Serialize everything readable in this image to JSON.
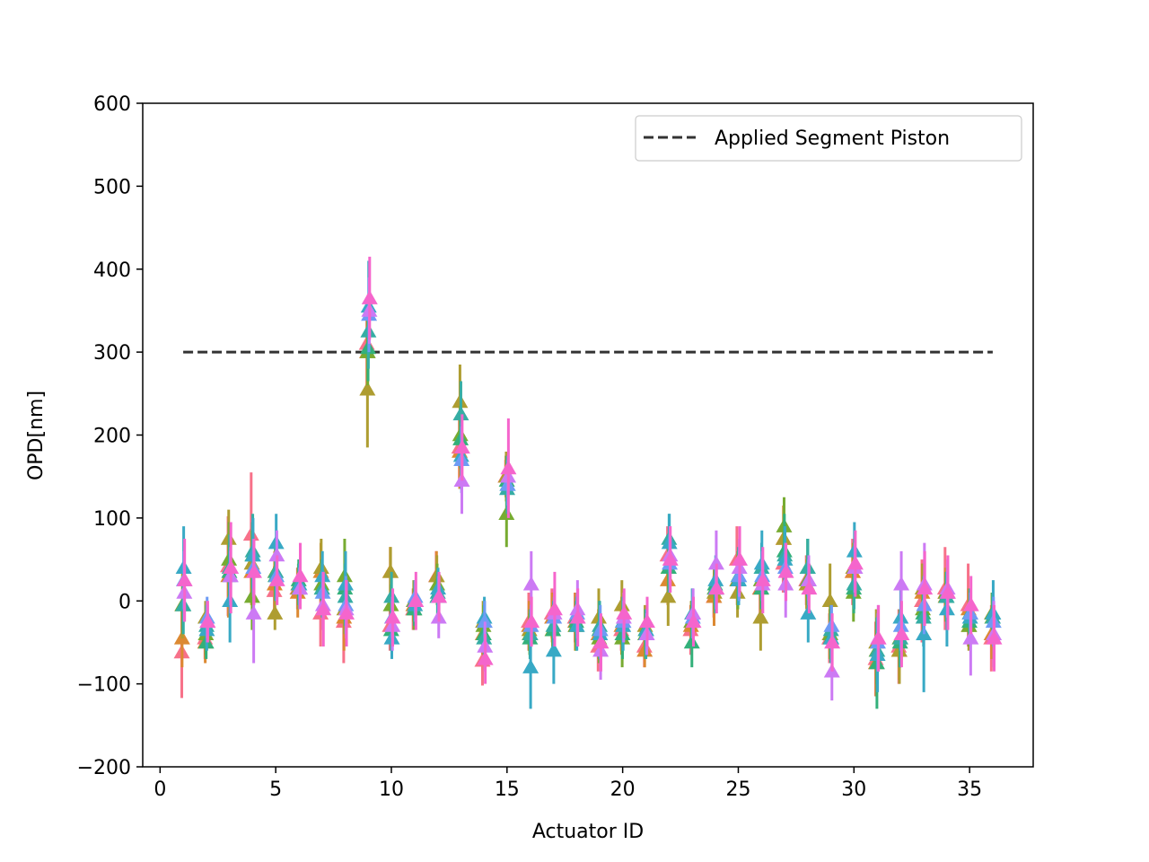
{
  "chart_data": {
    "type": "scatter",
    "xlabel": "Actuator ID",
    "ylabel": "OPD[nm]",
    "xlim": [
      -0.75,
      37.75
    ],
    "ylim": [
      -200,
      600
    ],
    "xticks": [
      0,
      5,
      10,
      15,
      20,
      25,
      30,
      35
    ],
    "yticks": [
      -200,
      -100,
      0,
      100,
      200,
      300,
      400,
      500,
      600
    ],
    "ytick_labels": [
      "−200",
      "−100",
      "0",
      "100",
      "200",
      "300",
      "400",
      "500",
      "600"
    ],
    "grid": false,
    "legend": {
      "position": "top-right",
      "entries": [
        "Applied Segment Piston"
      ]
    },
    "reference_line": {
      "name": "Applied Segment Piston",
      "y": 300,
      "x_range": [
        1,
        36
      ],
      "color": "#333333",
      "style": "dashed"
    },
    "marker": "triangle-up",
    "palette": [
      "#f77189",
      "#dc8932",
      "#ae9d31",
      "#77ab31",
      "#33b07a",
      "#36ada4",
      "#38a9c5",
      "#6e9bf4",
      "#cc7af4",
      "#f565cc"
    ],
    "actuators": [
      1,
      2,
      3,
      4,
      5,
      6,
      7,
      8,
      9,
      10,
      11,
      12,
      13,
      14,
      15,
      16,
      17,
      18,
      19,
      20,
      21,
      22,
      23,
      24,
      25,
      26,
      27,
      28,
      29,
      30,
      31,
      32,
      33,
      34,
      35,
      36
    ],
    "series": [
      {
        "values": [
          -62,
          -45,
          42,
          80,
          12,
          15,
          -15,
          -25,
          310,
          -30,
          -10,
          30,
          185,
          -72,
          150,
          -25,
          -15,
          -20,
          -55,
          -35,
          -55,
          55,
          -35,
          5,
          50,
          15,
          45,
          25,
          -45,
          35,
          -70,
          -55,
          0,
          15,
          -5,
          -45
        ],
        "errors": [
          55,
          25,
          60,
          75,
          30,
          25,
          40,
          50,
          50,
          30,
          25,
          30,
          40,
          30,
          20,
          35,
          30,
          30,
          30,
          25,
          25,
          35,
          30,
          25,
          40,
          30,
          35,
          30,
          30,
          40,
          45,
          45,
          50,
          50,
          50,
          40
        ]
      },
      {
        "values": [
          -45,
          -50,
          30,
          35,
          20,
          10,
          35,
          -20,
          300,
          35,
          -5,
          30,
          180,
          -40,
          150,
          -30,
          -20,
          -25,
          -40,
          -30,
          -60,
          25,
          -30,
          5,
          25,
          15,
          75,
          20,
          -40,
          35,
          -75,
          -60,
          10,
          10,
          -10,
          -40
        ],
        "errors": [
          35,
          25,
          50,
          40,
          40,
          30,
          35,
          40,
          50,
          30,
          20,
          30,
          45,
          25,
          25,
          30,
          30,
          35,
          30,
          35,
          20,
          30,
          25,
          35,
          30,
          30,
          40,
          30,
          30,
          30,
          40,
          35,
          35,
          30,
          25,
          30
        ]
      },
      {
        "values": [
          -5,
          -20,
          75,
          45,
          -15,
          15,
          40,
          -10,
          255,
          35,
          0,
          30,
          240,
          -25,
          150,
          -35,
          -35,
          -30,
          -20,
          -5,
          -30,
          5,
          -25,
          10,
          10,
          -20,
          75,
          20,
          0,
          40,
          -50,
          -60,
          15,
          5,
          -30,
          -15
        ],
        "errors": [
          40,
          20,
          35,
          40,
          20,
          25,
          35,
          30,
          70,
          30,
          25,
          25,
          45,
          25,
          30,
          25,
          20,
          25,
          35,
          30,
          25,
          35,
          25,
          25,
          30,
          40,
          35,
          30,
          45,
          30,
          40,
          40,
          30,
          30,
          30,
          25
        ]
      },
      {
        "values": [
          -5,
          -40,
          50,
          5,
          35,
          20,
          20,
          30,
          300,
          -5,
          -10,
          20,
          200,
          -30,
          105,
          -40,
          -35,
          -30,
          -45,
          -45,
          -40,
          40,
          -25,
          15,
          25,
          25,
          90,
          25,
          -40,
          10,
          -60,
          -45,
          -10,
          10,
          -30,
          -20
        ],
        "errors": [
          35,
          25,
          45,
          40,
          30,
          25,
          30,
          45,
          40,
          25,
          25,
          25,
          35,
          25,
          40,
          25,
          30,
          30,
          30,
          35,
          30,
          25,
          25,
          25,
          35,
          25,
          35,
          30,
          30,
          35,
          40,
          35,
          30,
          25,
          25,
          30
        ]
      },
      {
        "values": [
          -5,
          -50,
          35,
          55,
          30,
          25,
          15,
          15,
          305,
          -35,
          -10,
          5,
          195,
          -40,
          145,
          -45,
          -35,
          -25,
          -35,
          -40,
          -35,
          40,
          -50,
          20,
          25,
          15,
          60,
          40,
          -45,
          15,
          -75,
          -50,
          -15,
          5,
          -25,
          -15
        ],
        "errors": [
          30,
          20,
          35,
          40,
          30,
          25,
          25,
          30,
          40,
          25,
          20,
          25,
          35,
          20,
          30,
          25,
          30,
          25,
          35,
          30,
          25,
          30,
          30,
          25,
          30,
          25,
          45,
          35,
          30,
          30,
          55,
          30,
          30,
          25,
          25,
          25
        ]
      },
      {
        "values": [
          -5,
          -30,
          40,
          60,
          35,
          20,
          15,
          5,
          325,
          5,
          0,
          10,
          225,
          -45,
          135,
          -40,
          -30,
          -20,
          -30,
          -25,
          -40,
          75,
          -15,
          15,
          30,
          40,
          55,
          40,
          -35,
          20,
          -60,
          -45,
          -20,
          5,
          -15,
          -20
        ],
        "errors": [
          35,
          25,
          40,
          45,
          35,
          25,
          35,
          35,
          45,
          30,
          25,
          25,
          40,
          25,
          30,
          30,
          30,
          25,
          30,
          30,
          30,
          30,
          30,
          30,
          35,
          30,
          35,
          35,
          30,
          30,
          40,
          35,
          35,
          30,
          30,
          30
        ]
      },
      {
        "values": [
          40,
          -35,
          0,
          55,
          70,
          20,
          30,
          20,
          355,
          -45,
          -5,
          15,
          175,
          -20,
          140,
          -80,
          -60,
          -30,
          -40,
          -30,
          -35,
          70,
          -15,
          25,
          25,
          45,
          50,
          -15,
          -45,
          60,
          -65,
          -20,
          -40,
          -10,
          -20,
          -15
        ],
        "errors": [
          50,
          25,
          50,
          45,
          35,
          25,
          30,
          40,
          55,
          25,
          20,
          25,
          40,
          25,
          30,
          50,
          40,
          30,
          30,
          30,
          25,
          35,
          30,
          30,
          30,
          40,
          40,
          35,
          30,
          35,
          45,
          40,
          70,
          45,
          30,
          40
        ]
      },
      {
        "values": [
          25,
          -20,
          30,
          40,
          30,
          15,
          10,
          -5,
          345,
          -20,
          5,
          5,
          170,
          -25,
          140,
          -30,
          -20,
          -15,
          -35,
          -25,
          -40,
          45,
          -20,
          15,
          30,
          30,
          40,
          25,
          -30,
          40,
          -50,
          -30,
          -5,
          10,
          -15,
          -25
        ],
        "errors": [
          35,
          25,
          30,
          35,
          30,
          25,
          25,
          35,
          45,
          25,
          20,
          25,
          40,
          25,
          25,
          25,
          25,
          25,
          30,
          25,
          25,
          35,
          25,
          25,
          30,
          30,
          30,
          25,
          25,
          30,
          35,
          30,
          35,
          30,
          25,
          30
        ]
      },
      {
        "values": [
          10,
          -25,
          30,
          -15,
          55,
          15,
          -5,
          -10,
          350,
          -30,
          0,
          -20,
          145,
          -55,
          150,
          20,
          -15,
          -10,
          -60,
          -20,
          -40,
          55,
          -15,
          45,
          40,
          20,
          20,
          25,
          -85,
          40,
          -45,
          20,
          20,
          15,
          -45,
          -40
        ],
        "errors": [
          35,
          25,
          35,
          60,
          30,
          25,
          30,
          35,
          40,
          30,
          25,
          25,
          40,
          30,
          25,
          40,
          30,
          35,
          35,
          30,
          25,
          35,
          30,
          40,
          35,
          30,
          40,
          30,
          35,
          30,
          40,
          40,
          50,
          35,
          45,
          40
        ]
      },
      {
        "values": [
          25,
          -25,
          40,
          35,
          25,
          30,
          -10,
          -15,
          365,
          -20,
          0,
          5,
          185,
          -70,
          160,
          -25,
          -10,
          -20,
          -50,
          -15,
          -25,
          50,
          -25,
          15,
          50,
          25,
          35,
          15,
          -50,
          45,
          -45,
          -40,
          15,
          10,
          -5,
          -45
        ],
        "errors": [
          50,
          25,
          55,
          40,
          30,
          40,
          45,
          40,
          50,
          35,
          35,
          30,
          40,
          30,
          60,
          30,
          45,
          35,
          35,
          30,
          30,
          40,
          30,
          30,
          40,
          40,
          35,
          30,
          35,
          40,
          40,
          40,
          45,
          45,
          35,
          40
        ]
      }
    ]
  }
}
